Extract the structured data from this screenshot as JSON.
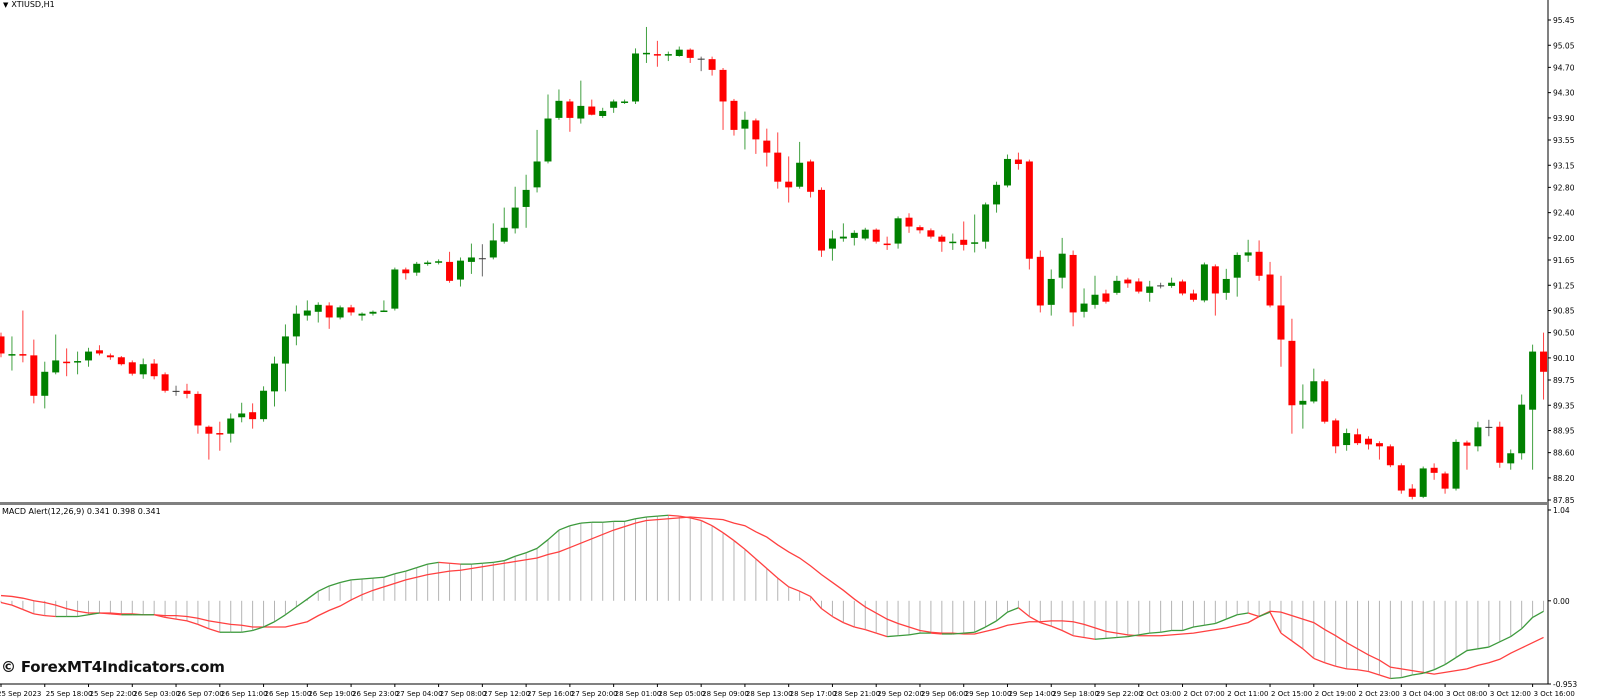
{
  "header": {
    "symbol_title": "XTIUSD,H1",
    "dropdown_icon": "triangle-down-icon"
  },
  "indicator": {
    "label": "MACD Alert(12,26,9) 0.341 0.398 0.341"
  },
  "watermark": "© ForexMT4Indicators.com",
  "colors": {
    "bull": "#008000",
    "bear": "#ff0000",
    "doji": "#333333",
    "macd_up": "#3c9a3c",
    "macd_down": "#ff4040",
    "signal": "#ff4040",
    "histogram": "#b4b4b4",
    "axis": "#000000",
    "separator": "#808080"
  },
  "chart_data": [
    {
      "type": "candlestick",
      "symbol": "XTIUSD",
      "timeframe": "H1",
      "ylim": [
        87.85,
        95.45
      ],
      "price_axis_labels": [
        "95.45",
        "95.05",
        "94.70",
        "94.30",
        "93.90",
        "93.55",
        "93.15",
        "92.80",
        "92.40",
        "92.00",
        "91.65",
        "91.25",
        "90.85",
        "90.50",
        "90.10",
        "89.75",
        "89.35",
        "88.95",
        "88.60",
        "88.20",
        "87.85"
      ],
      "time_axis_labels": [
        "25 Sep 2023",
        "25 Sep 18:00",
        "25 Sep 22:00",
        "26 Sep 03:00",
        "26 Sep 07:00",
        "26 Sep 11:00",
        "26 Sep 15:00",
        "26 Sep 19:00",
        "26 Sep 23:00",
        "27 Sep 04:00",
        "27 Sep 08:00",
        "27 Sep 12:00",
        "27 Sep 16:00",
        "27 Sep 20:00",
        "28 Sep 01:00",
        "28 Sep 05:00",
        "28 Sep 09:00",
        "28 Sep 13:00",
        "28 Sep 17:00",
        "28 Sep 21:00",
        "29 Sep 02:00",
        "29 Sep 06:00",
        "29 Sep 10:00",
        "29 Sep 14:00",
        "29 Sep 18:00",
        "29 Sep 22:00",
        "2 Oct 03:00",
        "2 Oct 07:00",
        "2 Oct 11:00",
        "2 Oct 15:00",
        "2 Oct 19:00",
        "2 Oct 23:00",
        "3 Oct 04:00",
        "3 Oct 08:00",
        "3 Oct 12:00",
        "3 Oct 16:00"
      ],
      "ohlc": [
        [
          90.44,
          90.5,
          90.11,
          90.17
        ],
        [
          90.15,
          90.44,
          89.9,
          90.16
        ],
        [
          90.16,
          90.85,
          90.03,
          90.15
        ],
        [
          90.14,
          90.39,
          89.38,
          89.5
        ],
        [
          89.5,
          90.04,
          89.3,
          89.88
        ],
        [
          89.87,
          90.47,
          89.84,
          90.06
        ],
        [
          90.04,
          90.25,
          89.81,
          90.03
        ],
        [
          90.04,
          90.2,
          89.84,
          90.05
        ],
        [
          90.06,
          90.26,
          89.96,
          90.2
        ],
        [
          90.22,
          90.3,
          90.14,
          90.17
        ],
        [
          90.14,
          90.17,
          90.07,
          90.11
        ],
        [
          90.11,
          90.13,
          89.98,
          90.0
        ],
        [
          90.03,
          90.06,
          89.82,
          89.85
        ],
        [
          89.84,
          90.09,
          89.77,
          90.0
        ],
        [
          90.01,
          90.08,
          89.76,
          89.81
        ],
        [
          89.84,
          89.87,
          89.55,
          89.58
        ],
        [
          89.57,
          89.66,
          89.5,
          89.57
        ],
        [
          89.58,
          89.69,
          89.46,
          89.53
        ],
        [
          89.53,
          89.57,
          88.9,
          89.03
        ],
        [
          89.01,
          89.03,
          88.49,
          88.9
        ],
        [
          88.91,
          89.09,
          88.63,
          88.9
        ],
        [
          88.9,
          89.22,
          88.76,
          89.14
        ],
        [
          89.16,
          89.39,
          89.08,
          89.22
        ],
        [
          89.24,
          89.38,
          88.98,
          89.13
        ],
        [
          89.13,
          89.65,
          89.09,
          89.58
        ],
        [
          89.57,
          90.12,
          89.33,
          90.01
        ],
        [
          90.01,
          90.63,
          89.57,
          90.44
        ],
        [
          90.44,
          90.93,
          90.3,
          90.8
        ],
        [
          90.77,
          91.01,
          90.69,
          90.85
        ],
        [
          90.83,
          90.98,
          90.66,
          90.94
        ],
        [
          90.93,
          90.98,
          90.56,
          90.74
        ],
        [
          90.74,
          90.93,
          90.71,
          90.9
        ],
        [
          90.9,
          90.94,
          90.77,
          90.82
        ],
        [
          90.77,
          90.82,
          90.69,
          90.8
        ],
        [
          90.8,
          90.85,
          90.77,
          90.83
        ],
        [
          90.84,
          91.01,
          90.83,
          90.85
        ],
        [
          90.88,
          91.53,
          90.85,
          91.5
        ],
        [
          91.5,
          91.53,
          91.34,
          91.44
        ],
        [
          91.45,
          91.62,
          91.4,
          91.59
        ],
        [
          91.6,
          91.64,
          91.56,
          91.61
        ],
        [
          91.62,
          91.66,
          91.58,
          91.63
        ],
        [
          91.62,
          91.78,
          91.29,
          91.32
        ],
        [
          91.34,
          91.69,
          91.23,
          91.64
        ],
        [
          91.62,
          91.91,
          91.43,
          91.69
        ],
        [
          91.67,
          91.9,
          91.39,
          91.67
        ],
        [
          91.69,
          92.23,
          91.66,
          91.96
        ],
        [
          91.94,
          92.48,
          91.91,
          92.16
        ],
        [
          92.15,
          92.81,
          92.07,
          92.48
        ],
        [
          92.49,
          93.0,
          92.16,
          92.76
        ],
        [
          92.8,
          93.71,
          92.72,
          93.21
        ],
        [
          93.21,
          94.27,
          93.18,
          93.89
        ],
        [
          93.9,
          94.35,
          93.87,
          94.17
        ],
        [
          94.16,
          94.2,
          93.68,
          93.9
        ],
        [
          93.89,
          94.49,
          93.81,
          94.09
        ],
        [
          94.08,
          94.19,
          93.94,
          93.95
        ],
        [
          93.93,
          94.06,
          93.9,
          94.01
        ],
        [
          94.06,
          94.19,
          93.98,
          94.16
        ],
        [
          94.15,
          94.19,
          94.12,
          94.16
        ],
        [
          94.16,
          95.0,
          94.12,
          94.92
        ],
        [
          94.91,
          95.34,
          94.77,
          94.93
        ],
        [
          94.91,
          95.12,
          94.71,
          94.9
        ],
        [
          94.9,
          94.95,
          94.8,
          94.91
        ],
        [
          94.88,
          95.03,
          94.87,
          94.98
        ],
        [
          94.98,
          95.0,
          94.77,
          94.85
        ],
        [
          94.83,
          94.87,
          94.64,
          94.83
        ],
        [
          94.83,
          94.87,
          94.57,
          94.66
        ],
        [
          94.66,
          94.69,
          93.71,
          94.16
        ],
        [
          94.17,
          94.2,
          93.62,
          93.71
        ],
        [
          93.73,
          94.0,
          93.4,
          93.87
        ],
        [
          93.86,
          93.89,
          93.33,
          93.56
        ],
        [
          93.54,
          93.73,
          93.13,
          93.35
        ],
        [
          93.35,
          93.67,
          92.78,
          92.89
        ],
        [
          92.89,
          93.29,
          92.56,
          92.8
        ],
        [
          92.81,
          93.52,
          92.78,
          93.19
        ],
        [
          93.21,
          93.24,
          92.64,
          92.73
        ],
        [
          92.76,
          92.8,
          91.7,
          91.8
        ],
        [
          91.83,
          92.12,
          91.64,
          91.99
        ],
        [
          91.99,
          92.23,
          91.94,
          92.02
        ],
        [
          92.0,
          92.12,
          91.88,
          92.08
        ],
        [
          91.99,
          92.16,
          91.96,
          92.13
        ],
        [
          92.13,
          92.15,
          91.91,
          91.94
        ],
        [
          91.91,
          92.02,
          91.81,
          91.9
        ],
        [
          91.91,
          92.34,
          91.83,
          92.31
        ],
        [
          92.32,
          92.39,
          92.08,
          92.18
        ],
        [
          92.17,
          92.2,
          92.07,
          92.12
        ],
        [
          92.12,
          92.15,
          91.99,
          92.02
        ],
        [
          92.02,
          92.05,
          91.78,
          91.94
        ],
        [
          91.93,
          92.07,
          91.81,
          91.94
        ],
        [
          91.97,
          92.26,
          91.8,
          91.89
        ],
        [
          91.92,
          92.37,
          91.77,
          91.93
        ],
        [
          91.94,
          92.56,
          91.83,
          92.53
        ],
        [
          92.53,
          92.89,
          92.4,
          92.84
        ],
        [
          92.83,
          93.32,
          92.8,
          93.25
        ],
        [
          93.24,
          93.35,
          93.08,
          93.17
        ],
        [
          93.21,
          93.24,
          91.5,
          91.67
        ],
        [
          91.7,
          91.8,
          90.82,
          90.93
        ],
        [
          90.94,
          91.5,
          90.77,
          91.35
        ],
        [
          91.37,
          92.0,
          91.2,
          91.75
        ],
        [
          91.73,
          91.8,
          90.6,
          90.82
        ],
        [
          90.83,
          91.2,
          90.74,
          90.96
        ],
        [
          90.94,
          91.4,
          90.88,
          91.1
        ],
        [
          91.12,
          91.18,
          90.96,
          90.99
        ],
        [
          91.13,
          91.4,
          91.1,
          91.32
        ],
        [
          91.34,
          91.37,
          91.21,
          91.28
        ],
        [
          91.31,
          91.36,
          91.12,
          91.15
        ],
        [
          91.13,
          91.32,
          90.99,
          91.23
        ],
        [
          91.24,
          91.29,
          91.2,
          91.24
        ],
        [
          91.24,
          91.37,
          91.21,
          91.29
        ],
        [
          91.31,
          91.34,
          91.09,
          91.12
        ],
        [
          91.12,
          91.18,
          90.99,
          91.02
        ],
        [
          91.01,
          91.61,
          90.98,
          91.58
        ],
        [
          91.55,
          91.58,
          90.77,
          91.12
        ],
        [
          91.13,
          91.51,
          91.02,
          91.35
        ],
        [
          91.37,
          91.77,
          91.07,
          91.73
        ],
        [
          91.72,
          91.97,
          91.62,
          91.77
        ],
        [
          91.78,
          91.96,
          91.32,
          91.4
        ],
        [
          91.42,
          91.62,
          90.9,
          90.93
        ],
        [
          90.93,
          91.4,
          89.96,
          90.39
        ],
        [
          90.37,
          90.72,
          88.9,
          89.35
        ],
        [
          89.36,
          89.68,
          88.98,
          89.42
        ],
        [
          89.41,
          89.93,
          89.38,
          89.73
        ],
        [
          89.73,
          89.76,
          89.06,
          89.09
        ],
        [
          89.11,
          89.14,
          88.59,
          88.7
        ],
        [
          88.72,
          88.98,
          88.63,
          88.91
        ],
        [
          88.89,
          88.98,
          88.72,
          88.75
        ],
        [
          88.82,
          88.86,
          88.65,
          88.73
        ],
        [
          88.75,
          88.78,
          88.49,
          88.7
        ],
        [
          88.7,
          88.73,
          88.37,
          88.4
        ],
        [
          88.4,
          88.43,
          87.95,
          88.0
        ],
        [
          88.03,
          88.1,
          87.86,
          87.9
        ],
        [
          87.9,
          88.38,
          87.88,
          88.35
        ],
        [
          88.36,
          88.43,
          88.17,
          88.28
        ],
        [
          88.27,
          88.3,
          87.95,
          88.03
        ],
        [
          88.03,
          88.81,
          88.0,
          88.77
        ],
        [
          88.76,
          88.79,
          88.33,
          88.71
        ],
        [
          88.7,
          89.09,
          88.62,
          89.0
        ],
        [
          89.0,
          89.12,
          88.86,
          89.0
        ],
        [
          89.01,
          89.09,
          88.36,
          88.44
        ],
        [
          88.43,
          88.65,
          88.33,
          88.59
        ],
        [
          88.59,
          89.52,
          88.49,
          89.36
        ],
        [
          89.28,
          90.31,
          88.33,
          90.2
        ],
        [
          90.2,
          90.5,
          89.44,
          89.88
        ]
      ]
    },
    {
      "type": "line",
      "indicator": "MACD Alert(12,26,9)",
      "ylim": [
        -0.953,
        1.04
      ],
      "axis_labels": [
        "1.04",
        "0.00",
        "-0.953"
      ],
      "histogram_and_macd": [
        -0.02,
        -0.05,
        -0.1,
        -0.15,
        -0.17,
        -0.18,
        -0.18,
        -0.18,
        -0.16,
        -0.14,
        -0.15,
        -0.16,
        -0.16,
        -0.16,
        -0.16,
        -0.19,
        -0.21,
        -0.23,
        -0.27,
        -0.32,
        -0.36,
        -0.36,
        -0.36,
        -0.34,
        -0.3,
        -0.24,
        -0.16,
        -0.07,
        0.02,
        0.11,
        0.17,
        0.21,
        0.24,
        0.25,
        0.26,
        0.27,
        0.31,
        0.34,
        0.38,
        0.42,
        0.44,
        0.43,
        0.42,
        0.42,
        0.43,
        0.44,
        0.46,
        0.51,
        0.55,
        0.6,
        0.7,
        0.81,
        0.86,
        0.89,
        0.9,
        0.9,
        0.91,
        0.91,
        0.94,
        0.96,
        0.97,
        0.98,
        0.97,
        0.95,
        0.92,
        0.86,
        0.78,
        0.69,
        0.59,
        0.48,
        0.37,
        0.26,
        0.16,
        0.11,
        0.05,
        -0.09,
        -0.18,
        -0.25,
        -0.3,
        -0.33,
        -0.37,
        -0.41,
        -0.4,
        -0.39,
        -0.37,
        -0.37,
        -0.38,
        -0.38,
        -0.37,
        -0.36,
        -0.3,
        -0.23,
        -0.13,
        -0.08,
        -0.18,
        -0.25,
        -0.29,
        -0.34,
        -0.4,
        -0.42,
        -0.44,
        -0.43,
        -0.42,
        -0.41,
        -0.39,
        -0.37,
        -0.36,
        -0.34,
        -0.34,
        -0.3,
        -0.28,
        -0.26,
        -0.21,
        -0.16,
        -0.14,
        -0.18,
        -0.13,
        -0.37,
        -0.46,
        -0.55,
        -0.66,
        -0.71,
        -0.75,
        -0.78,
        -0.79,
        -0.81,
        -0.85,
        -0.89,
        -0.88,
        -0.85,
        -0.83,
        -0.79,
        -0.73,
        -0.65,
        -0.57,
        -0.55,
        -0.53,
        -0.47,
        -0.41,
        -0.32,
        -0.19,
        -0.12
      ],
      "signal": [
        0.06,
        0.05,
        0.03,
        0.0,
        -0.02,
        -0.05,
        -0.09,
        -0.12,
        -0.14,
        -0.14,
        -0.14,
        -0.15,
        -0.15,
        -0.16,
        -0.16,
        -0.17,
        -0.17,
        -0.18,
        -0.2,
        -0.23,
        -0.25,
        -0.27,
        -0.28,
        -0.3,
        -0.3,
        -0.3,
        -0.3,
        -0.27,
        -0.24,
        -0.17,
        -0.11,
        -0.06,
        0.01,
        0.07,
        0.12,
        0.16,
        0.2,
        0.24,
        0.27,
        0.3,
        0.32,
        0.34,
        0.35,
        0.37,
        0.39,
        0.41,
        0.43,
        0.45,
        0.47,
        0.49,
        0.53,
        0.56,
        0.61,
        0.66,
        0.71,
        0.76,
        0.81,
        0.85,
        0.89,
        0.92,
        0.93,
        0.94,
        0.95,
        0.96,
        0.95,
        0.94,
        0.93,
        0.89,
        0.86,
        0.79,
        0.73,
        0.64,
        0.56,
        0.49,
        0.4,
        0.3,
        0.21,
        0.12,
        0.02,
        -0.07,
        -0.14,
        -0.21,
        -0.26,
        -0.3,
        -0.34,
        -0.36,
        -0.37,
        -0.37,
        -0.38,
        -0.38,
        -0.35,
        -0.32,
        -0.28,
        -0.26,
        -0.24,
        -0.24,
        -0.23,
        -0.23,
        -0.24,
        -0.27,
        -0.31,
        -0.35,
        -0.37,
        -0.39,
        -0.4,
        -0.4,
        -0.4,
        -0.39,
        -0.38,
        -0.37,
        -0.35,
        -0.33,
        -0.31,
        -0.28,
        -0.25,
        -0.18,
        -0.12,
        -0.13,
        -0.17,
        -0.21,
        -0.25,
        -0.33,
        -0.4,
        -0.48,
        -0.55,
        -0.62,
        -0.68,
        -0.76,
        -0.78,
        -0.8,
        -0.82,
        -0.84,
        -0.82,
        -0.8,
        -0.78,
        -0.74,
        -0.71,
        -0.67,
        -0.6,
        -0.54,
        -0.48,
        -0.42
      ]
    }
  ]
}
